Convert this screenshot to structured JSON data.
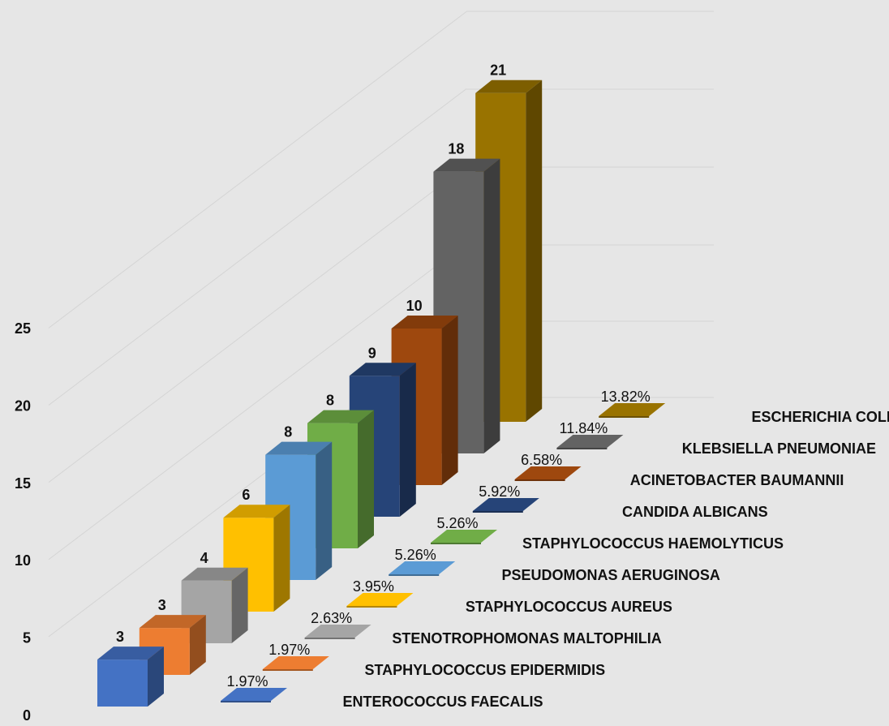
{
  "chart_data": {
    "type": "bar",
    "variant": "3d-column",
    "ylim": [
      0,
      25
    ],
    "yticks": [
      0,
      5,
      10,
      15,
      20,
      25
    ],
    "grid": true,
    "categories": [
      "ENTEROCOCCUS FAECALIS",
      "STAPHYLOCOCCUS EPIDERMIDIS",
      "STENOTROPHOMONAS MALTOPHILIA",
      "STAPHYLOCOCCUS AUREUS",
      "PSEUDOMONAS AERUGINOSA",
      "STAPHYLOCOCCUS HAEMOLYTICUS",
      "CANDIDA ALBICANS",
      "ACINETOBACTER BAUMANNII",
      "KLEBSIELLA PNEUMONIAE",
      "ESCHERICHIA COLI"
    ],
    "series": [
      {
        "values": [
          3,
          3,
          4,
          6,
          8,
          8,
          9,
          10,
          18,
          21
        ],
        "labels": [
          "3",
          "3",
          "4",
          "6",
          "8",
          "8",
          "9",
          "10",
          "18",
          "21"
        ]
      },
      {
        "values": [
          1.97,
          1.97,
          2.63,
          3.95,
          5.26,
          5.26,
          5.92,
          6.58,
          11.84,
          13.82
        ],
        "labels": [
          "1.97%",
          "1.97%",
          "2.63%",
          "3.95%",
          "5.26%",
          "5.26%",
          "5.92%",
          "6.58%",
          "11.84%",
          "13.82%"
        ]
      }
    ],
    "colors": [
      "#4472c4",
      "#ed7d31",
      "#a5a5a5",
      "#ffc000",
      "#5b9bd5",
      "#70ad47",
      "#264478",
      "#9e480e",
      "#636363",
      "#997300"
    ]
  }
}
